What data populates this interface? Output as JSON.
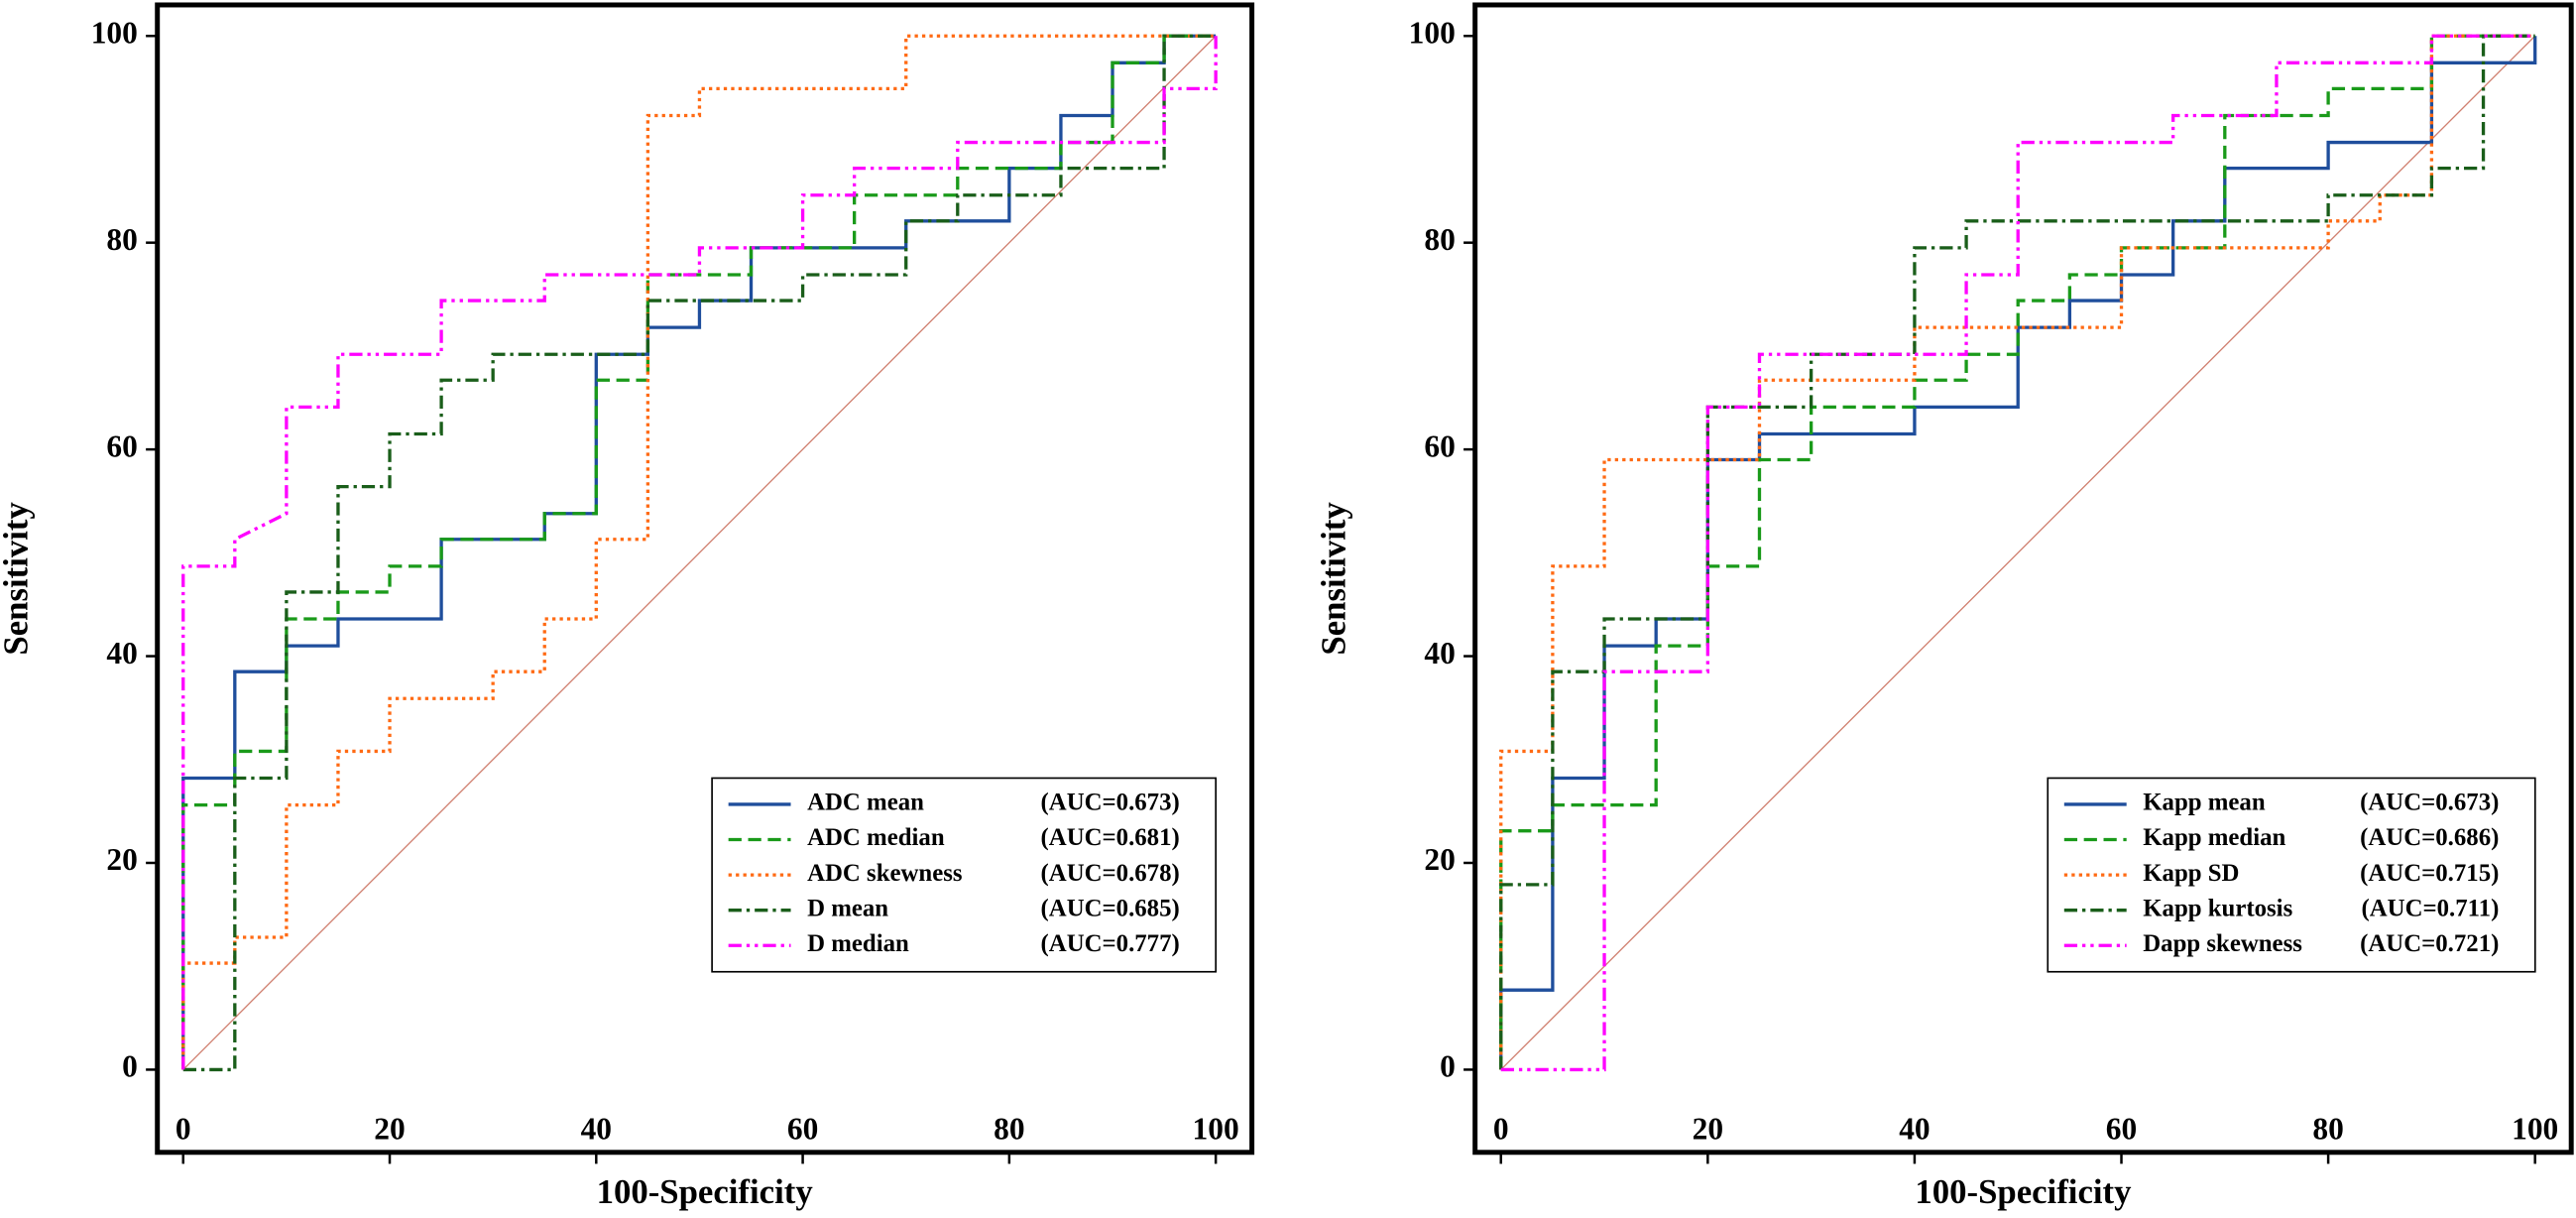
{
  "chart_data": [
    {
      "type": "line",
      "xlabel": "100-Specificity",
      "ylabel": "Sensitivity",
      "xlim": [
        -2.5,
        103.5
      ],
      "ylim": [
        -8,
        103
      ],
      "xticks": [
        0,
        20,
        40,
        60,
        80,
        100
      ],
      "yticks": [
        0,
        20,
        40,
        60,
        80,
        100
      ],
      "legend": "lower right",
      "series": [
        {
          "name": "ADC mean",
          "label": "(AUC=0.673)",
          "color": "#1f4e9c",
          "linestyle": "solid",
          "x": [
            0,
            0,
            5,
            5,
            10,
            10,
            15,
            15,
            25,
            25,
            35,
            35,
            40,
            40,
            45,
            45,
            50,
            50,
            55,
            55,
            70,
            70,
            80,
            80,
            85,
            85,
            90,
            90,
            95,
            95,
            100
          ],
          "values": [
            0,
            28.2,
            28.2,
            38.5,
            38.5,
            41,
            41,
            43.6,
            43.6,
            51.3,
            51.3,
            53.8,
            53.8,
            69.2,
            69.2,
            71.8,
            71.8,
            74.4,
            74.4,
            79.5,
            79.5,
            82.1,
            82.1,
            87.2,
            87.2,
            92.3,
            92.3,
            97.4,
            97.4,
            100,
            100
          ]
        },
        {
          "name": "ADC median",
          "label": "(AUC=0.681)",
          "color": "#1a9a1a",
          "linestyle": "dashed",
          "x": [
            0,
            0,
            5,
            5,
            10,
            10,
            15,
            15,
            20,
            20,
            25,
            25,
            35,
            35,
            40,
            40,
            45,
            45,
            55,
            55,
            65,
            65,
            75,
            75,
            85,
            85,
            90,
            90,
            95,
            95,
            100
          ],
          "values": [
            0,
            25.6,
            25.6,
            30.8,
            30.8,
            43.6,
            43.6,
            46.2,
            46.2,
            48.7,
            48.7,
            51.3,
            51.3,
            53.8,
            53.8,
            66.7,
            66.7,
            76.9,
            76.9,
            79.5,
            79.5,
            84.6,
            84.6,
            87.2,
            87.2,
            89.7,
            89.7,
            97.4,
            97.4,
            100,
            100
          ]
        },
        {
          "name": "ADC skewness",
          "label": "(AUC=0.678)",
          "color": "#ff6a13",
          "linestyle": "dotted",
          "x": [
            0,
            0,
            5,
            5,
            10,
            10,
            15,
            15,
            20,
            20,
            30,
            30,
            35,
            35,
            40,
            40,
            45,
            45,
            50,
            50,
            70,
            70,
            100
          ],
          "values": [
            0,
            10.3,
            10.3,
            12.8,
            12.8,
            25.6,
            25.6,
            30.8,
            30.8,
            35.9,
            35.9,
            38.5,
            38.5,
            43.6,
            43.6,
            51.3,
            51.3,
            92.3,
            92.3,
            94.9,
            94.9,
            100,
            100
          ]
        },
        {
          "name": "D mean",
          "label": "(AUC=0.685)",
          "color": "#1a5e1a",
          "linestyle": "dashdot",
          "x": [
            0,
            5,
            5,
            10,
            10,
            15,
            15,
            20,
            20,
            25,
            25,
            30,
            30,
            45,
            45,
            60,
            60,
            70,
            70,
            75,
            75,
            85,
            85,
            95,
            95,
            100
          ],
          "values": [
            0,
            0,
            28.2,
            28.2,
            46.2,
            46.2,
            56.4,
            56.4,
            61.5,
            61.5,
            66.7,
            66.7,
            69.2,
            69.2,
            74.4,
            74.4,
            76.9,
            76.9,
            82.1,
            82.1,
            84.6,
            84.6,
            87.2,
            87.2,
            100,
            100
          ]
        },
        {
          "name": "D median",
          "label": "(AUC=0.777)",
          "color": "#ff00ff",
          "linestyle": "dashdotdot",
          "x": [
            0,
            0,
            5,
            5,
            10,
            10,
            15,
            15,
            25,
            25,
            35,
            35,
            50,
            50,
            60,
            60,
            65,
            65,
            75,
            75,
            95,
            95,
            100,
            100
          ],
          "values": [
            0,
            48.7,
            48.7,
            51.3,
            53.8,
            64.1,
            64.1,
            69.2,
            69.2,
            74.4,
            74.4,
            76.9,
            76.9,
            79.5,
            79.5,
            84.6,
            84.6,
            87.2,
            87.2,
            89.7,
            89.7,
            94.9,
            94.9,
            100
          ]
        }
      ]
    },
    {
      "type": "line",
      "xlabel": "100-Specificity",
      "ylabel": "Sensitivity",
      "xlim": [
        -2.5,
        103.5
      ],
      "ylim": [
        -8,
        103
      ],
      "xticks": [
        0,
        20,
        40,
        60,
        80,
        100
      ],
      "yticks": [
        0,
        20,
        40,
        60,
        80,
        100
      ],
      "legend": "lower right",
      "series": [
        {
          "name": "Kapp mean",
          "label": "(AUC=0.673)",
          "color": "#1f4e9c",
          "linestyle": "solid",
          "x": [
            0,
            0,
            5,
            5,
            10,
            10,
            15,
            15,
            20,
            20,
            25,
            25,
            40,
            40,
            50,
            50,
            55,
            55,
            60,
            60,
            65,
            65,
            70,
            70,
            80,
            80,
            90,
            90,
            100,
            100
          ],
          "values": [
            0,
            7.7,
            7.7,
            28.2,
            28.2,
            41,
            41,
            43.6,
            43.6,
            59,
            59,
            61.5,
            61.5,
            64.1,
            64.1,
            71.8,
            71.8,
            74.4,
            74.4,
            76.9,
            76.9,
            82.1,
            82.1,
            87.2,
            87.2,
            89.7,
            89.7,
            97.4,
            97.4,
            100
          ]
        },
        {
          "name": "Kapp median",
          "label": "(AUC=0.686)",
          "color": "#1a9a1a",
          "linestyle": "dashed",
          "x": [
            0,
            0,
            5,
            5,
            15,
            15,
            20,
            20,
            25,
            25,
            30,
            30,
            40,
            40,
            45,
            45,
            50,
            50,
            55,
            55,
            60,
            60,
            70,
            70,
            80,
            80,
            90,
            90,
            100
          ],
          "values": [
            0,
            23.1,
            23.1,
            25.6,
            25.6,
            41,
            41,
            48.7,
            48.7,
            59,
            59,
            64.1,
            64.1,
            66.7,
            66.7,
            69.2,
            69.2,
            74.4,
            74.4,
            76.9,
            76.9,
            79.5,
            79.5,
            92.3,
            92.3,
            94.9,
            94.9,
            100,
            100
          ]
        },
        {
          "name": "Kapp SD",
          "label": "(AUC=0.715)",
          "color": "#ff6a13",
          "linestyle": "dotted",
          "x": [
            0,
            0,
            5,
            5,
            10,
            10,
            25,
            25,
            40,
            40,
            60,
            60,
            80,
            80,
            85,
            85,
            90,
            90,
            100
          ],
          "values": [
            0,
            30.8,
            30.8,
            48.7,
            48.7,
            59,
            59,
            66.7,
            66.7,
            71.8,
            71.8,
            79.5,
            79.5,
            82.1,
            82.1,
            84.6,
            84.6,
            100,
            100
          ]
        },
        {
          "name": "Kapp kurtosis",
          "label": "(AUC=0.711)",
          "color": "#1a5e1a",
          "linestyle": "dashdot",
          "x": [
            0,
            0,
            5,
            5,
            10,
            10,
            20,
            20,
            30,
            30,
            40,
            40,
            45,
            45,
            80,
            80,
            90,
            90,
            95,
            95,
            100
          ],
          "values": [
            0,
            17.9,
            17.9,
            38.5,
            38.5,
            43.6,
            43.6,
            64.1,
            64.1,
            69.2,
            69.2,
            79.5,
            79.5,
            82.1,
            82.1,
            84.6,
            84.6,
            87.2,
            87.2,
            100,
            100
          ]
        },
        {
          "name": "Dapp skewness",
          "label": "(AUC=0.721)",
          "color": "#ff00ff",
          "linestyle": "dashdotdot",
          "x": [
            0,
            10,
            10,
            20,
            20,
            25,
            25,
            45,
            45,
            50,
            50,
            65,
            65,
            75,
            75,
            90,
            90,
            100
          ],
          "values": [
            0,
            0,
            38.5,
            38.5,
            64.1,
            64.1,
            69.2,
            69.2,
            76.9,
            76.9,
            89.7,
            89.7,
            92.3,
            92.3,
            97.4,
            97.4,
            100,
            100
          ]
        }
      ]
    }
  ]
}
